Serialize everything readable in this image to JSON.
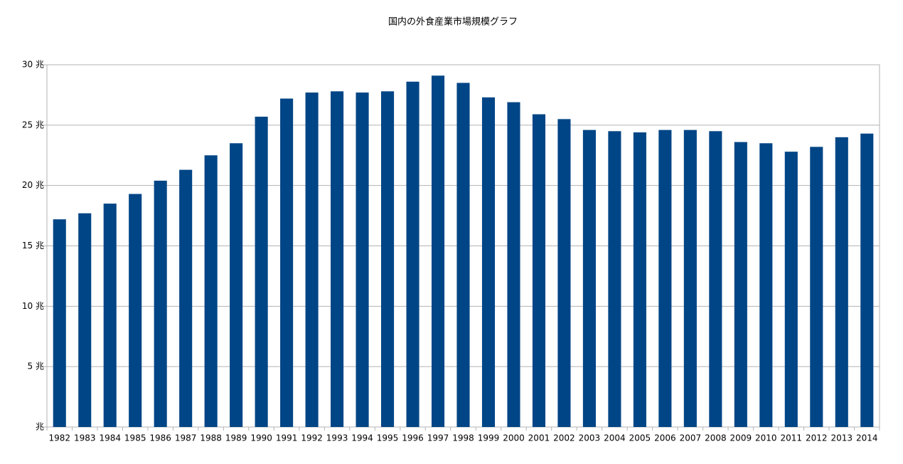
{
  "chart_data": {
    "type": "bar",
    "title": "国内の外食産業市場規模グラフ",
    "categories": [
      "1982",
      "1983",
      "1984",
      "1985",
      "1986",
      "1987",
      "1988",
      "1989",
      "1990",
      "1991",
      "1992",
      "1993",
      "1994",
      "1995",
      "1996",
      "1997",
      "1998",
      "1999",
      "2000",
      "2001",
      "2002",
      "2003",
      "2004",
      "2005",
      "2006",
      "2007",
      "2008",
      "2009",
      "2010",
      "2011",
      "2012",
      "2013",
      "2014"
    ],
    "values": [
      17.2,
      17.7,
      18.5,
      19.3,
      20.4,
      21.3,
      22.5,
      23.5,
      25.7,
      27.2,
      27.7,
      27.8,
      27.7,
      27.8,
      28.6,
      29.1,
      28.5,
      27.3,
      26.9,
      25.9,
      25.5,
      24.6,
      24.5,
      24.4,
      24.6,
      24.6,
      24.5,
      23.6,
      23.5,
      22.8,
      23.2,
      24.0,
      24.3
    ],
    "color": "#004586",
    "ylim": [
      0,
      30
    ],
    "yticks": [
      {
        "value": 0,
        "label": "兆"
      },
      {
        "value": 5,
        "label": "5 兆"
      },
      {
        "value": 10,
        "label": "10 兆"
      },
      {
        "value": 15,
        "label": "15 兆"
      },
      {
        "value": 20,
        "label": "20 兆"
      },
      {
        "value": 25,
        "label": "25 兆"
      },
      {
        "value": 30,
        "label": "30 兆"
      }
    ],
    "grid": true
  }
}
